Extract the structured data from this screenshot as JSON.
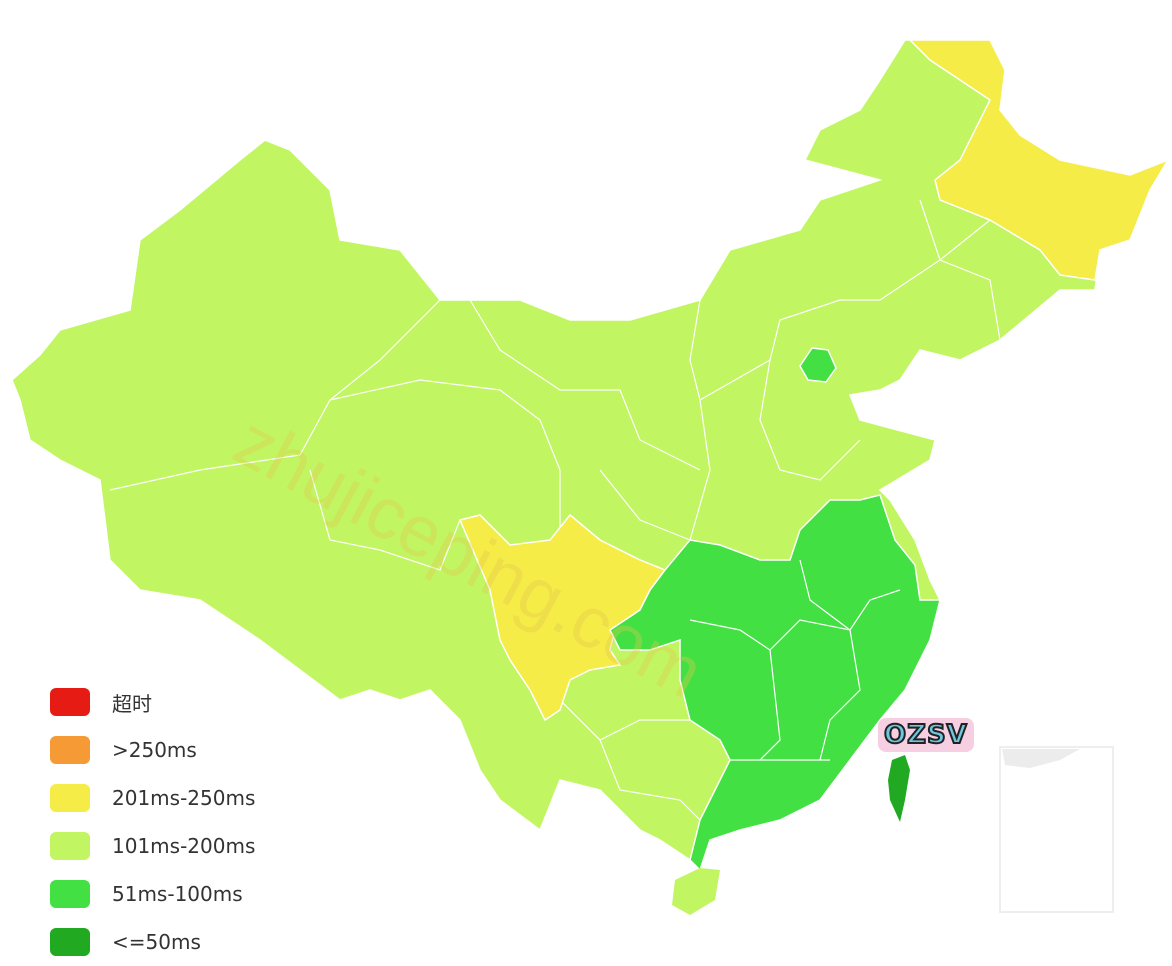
{
  "colors": {
    "timeout": "#e61c14",
    "over250": "#f59a35",
    "r201_250": "#f5ec48",
    "r101_200": "#c1f562",
    "r51_100": "#42e042",
    "le50": "#22a922",
    "border": "#ffffff",
    "inset_border": "#eeeeee"
  },
  "legend": [
    {
      "label": "超时",
      "color": "#e61c14"
    },
    {
      "label": ">250ms",
      "color": "#f59a35"
    },
    {
      "label": "201ms-250ms",
      "color": "#f5ec48"
    },
    {
      "label": "101ms-200ms",
      "color": "#c1f562"
    },
    {
      "label": "51ms-100ms",
      "color": "#42e042"
    },
    {
      "label": "<=50ms",
      "color": "#22a922"
    }
  ],
  "regions": [
    {
      "name": "Heilongjiang",
      "level": "201ms-250ms"
    },
    {
      "name": "Sichuan",
      "level": "201ms-250ms"
    },
    {
      "name": "Beijing",
      "level": "51ms-100ms"
    },
    {
      "name": "East/South/Central China",
      "level": "51ms-100ms"
    },
    {
      "name": "Taiwan",
      "level": "<=50ms"
    },
    {
      "name": "Hainan",
      "level": "101ms-200ms"
    },
    {
      "name": "Other provinces",
      "level": "101ms-200ms"
    }
  ],
  "watermark": "zhujiceping.com",
  "logo": "OZSV"
}
